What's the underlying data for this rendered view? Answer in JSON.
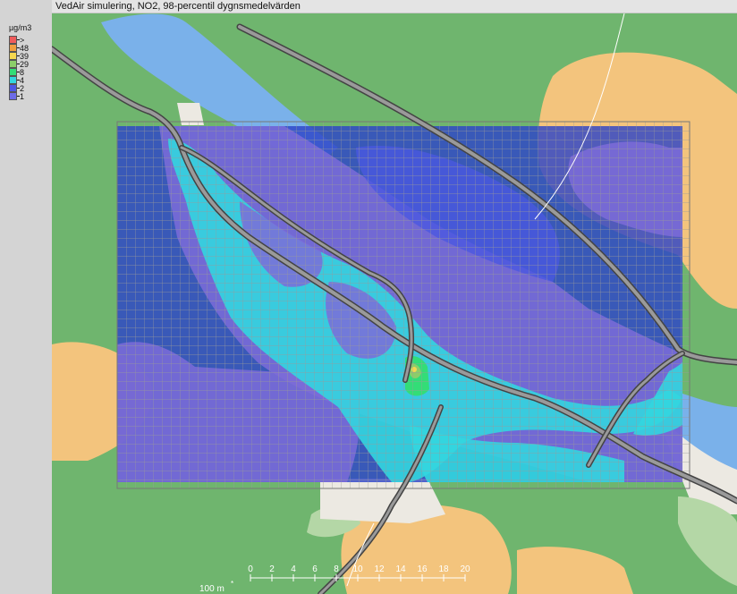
{
  "title": "VedAir simulering, NO2, 98-percentil dygnsmedelvärden",
  "legend": {
    "unit": "µg/m3",
    "entries": [
      {
        "label": ">",
        "color": "#ef5c5c"
      },
      {
        "label": "48",
        "color": "#f0a040"
      },
      {
        "label": "39",
        "color": "#f6d850"
      },
      {
        "label": "29",
        "color": "#8ccd6a"
      },
      {
        "label": "8",
        "color": "#33dd77"
      },
      {
        "label": "4",
        "color": "#33d6df"
      },
      {
        "label": "2",
        "color": "#4d57e6"
      },
      {
        "label": "1",
        "color": "#6d6be8"
      }
    ]
  },
  "scale": {
    "unit_label": "100 m",
    "ticks": [
      "0",
      "2",
      "4",
      "6",
      "8",
      "10",
      "12",
      "14",
      "16",
      "18",
      "20"
    ]
  },
  "colors": {
    "forest": "#6fb56e",
    "open_land": "#f3c47d",
    "water": "#7ab1ea",
    "built_area": "#ece9e2",
    "field": "#b4d7a6",
    "road": "#7a7a7a",
    "grid_line": "#9a9a9a"
  }
}
